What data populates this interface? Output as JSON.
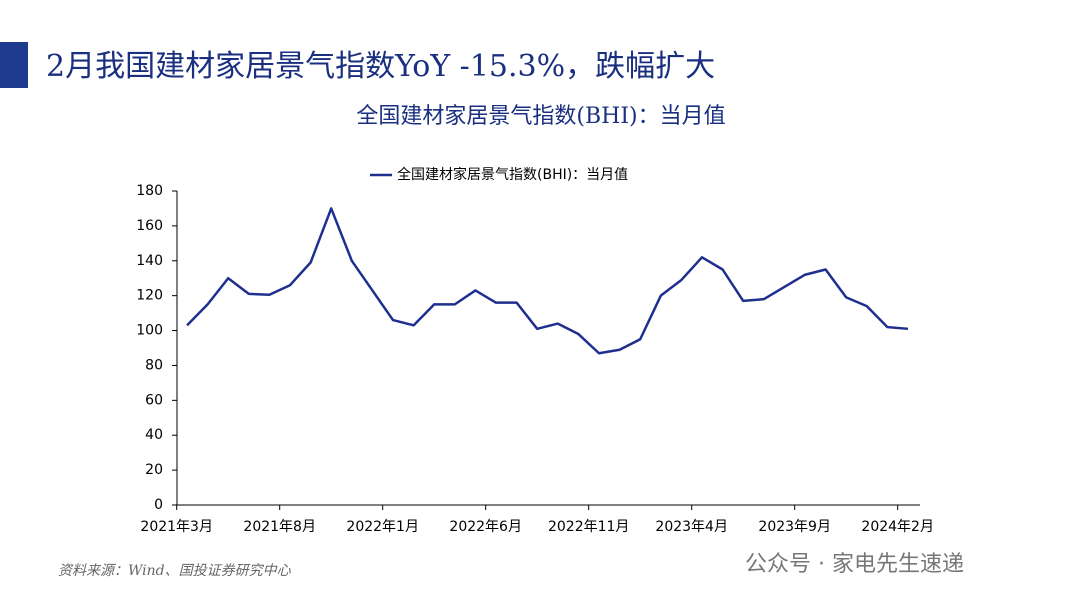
{
  "header": {
    "title": "2月我国建材家居景气指数YoY -15.3%，跌幅扩大",
    "source": "资料来源：Wind、国投证券研究中心",
    "watermark": "公众号 · 家电先生速递"
  },
  "chart_data": {
    "type": "line",
    "title": "全国建材家居景气指数(BHI)：当月值",
    "categories": [
      "2021年3月",
      null,
      null,
      null,
      null,
      "2021年8月",
      null,
      null,
      null,
      null,
      "2022年1月",
      null,
      null,
      null,
      null,
      "2022年6月",
      null,
      null,
      null,
      null,
      "2022年11月",
      null,
      null,
      null,
      null,
      "2023年4月",
      null,
      null,
      null,
      null,
      "2023年9月",
      null,
      null,
      null,
      null,
      "2024年2月"
    ],
    "series": [
      {
        "name": "全国建材家居景气指数(BHI)：当月值",
        "color": "#1f2f8f",
        "values": [
          103,
          115,
          130,
          121,
          120.5,
          126,
          139,
          170,
          140,
          123,
          106,
          103,
          115,
          115,
          123,
          116,
          116,
          101,
          104,
          98,
          87,
          89,
          95,
          120,
          129,
          142,
          135,
          117,
          118,
          125,
          132,
          135,
          119,
          114,
          102,
          101
        ]
      }
    ],
    "ylim": [
      0,
      180
    ],
    "yticks": [
      0,
      20,
      40,
      60,
      80,
      100,
      120,
      140,
      160,
      180
    ],
    "legend": "top"
  }
}
